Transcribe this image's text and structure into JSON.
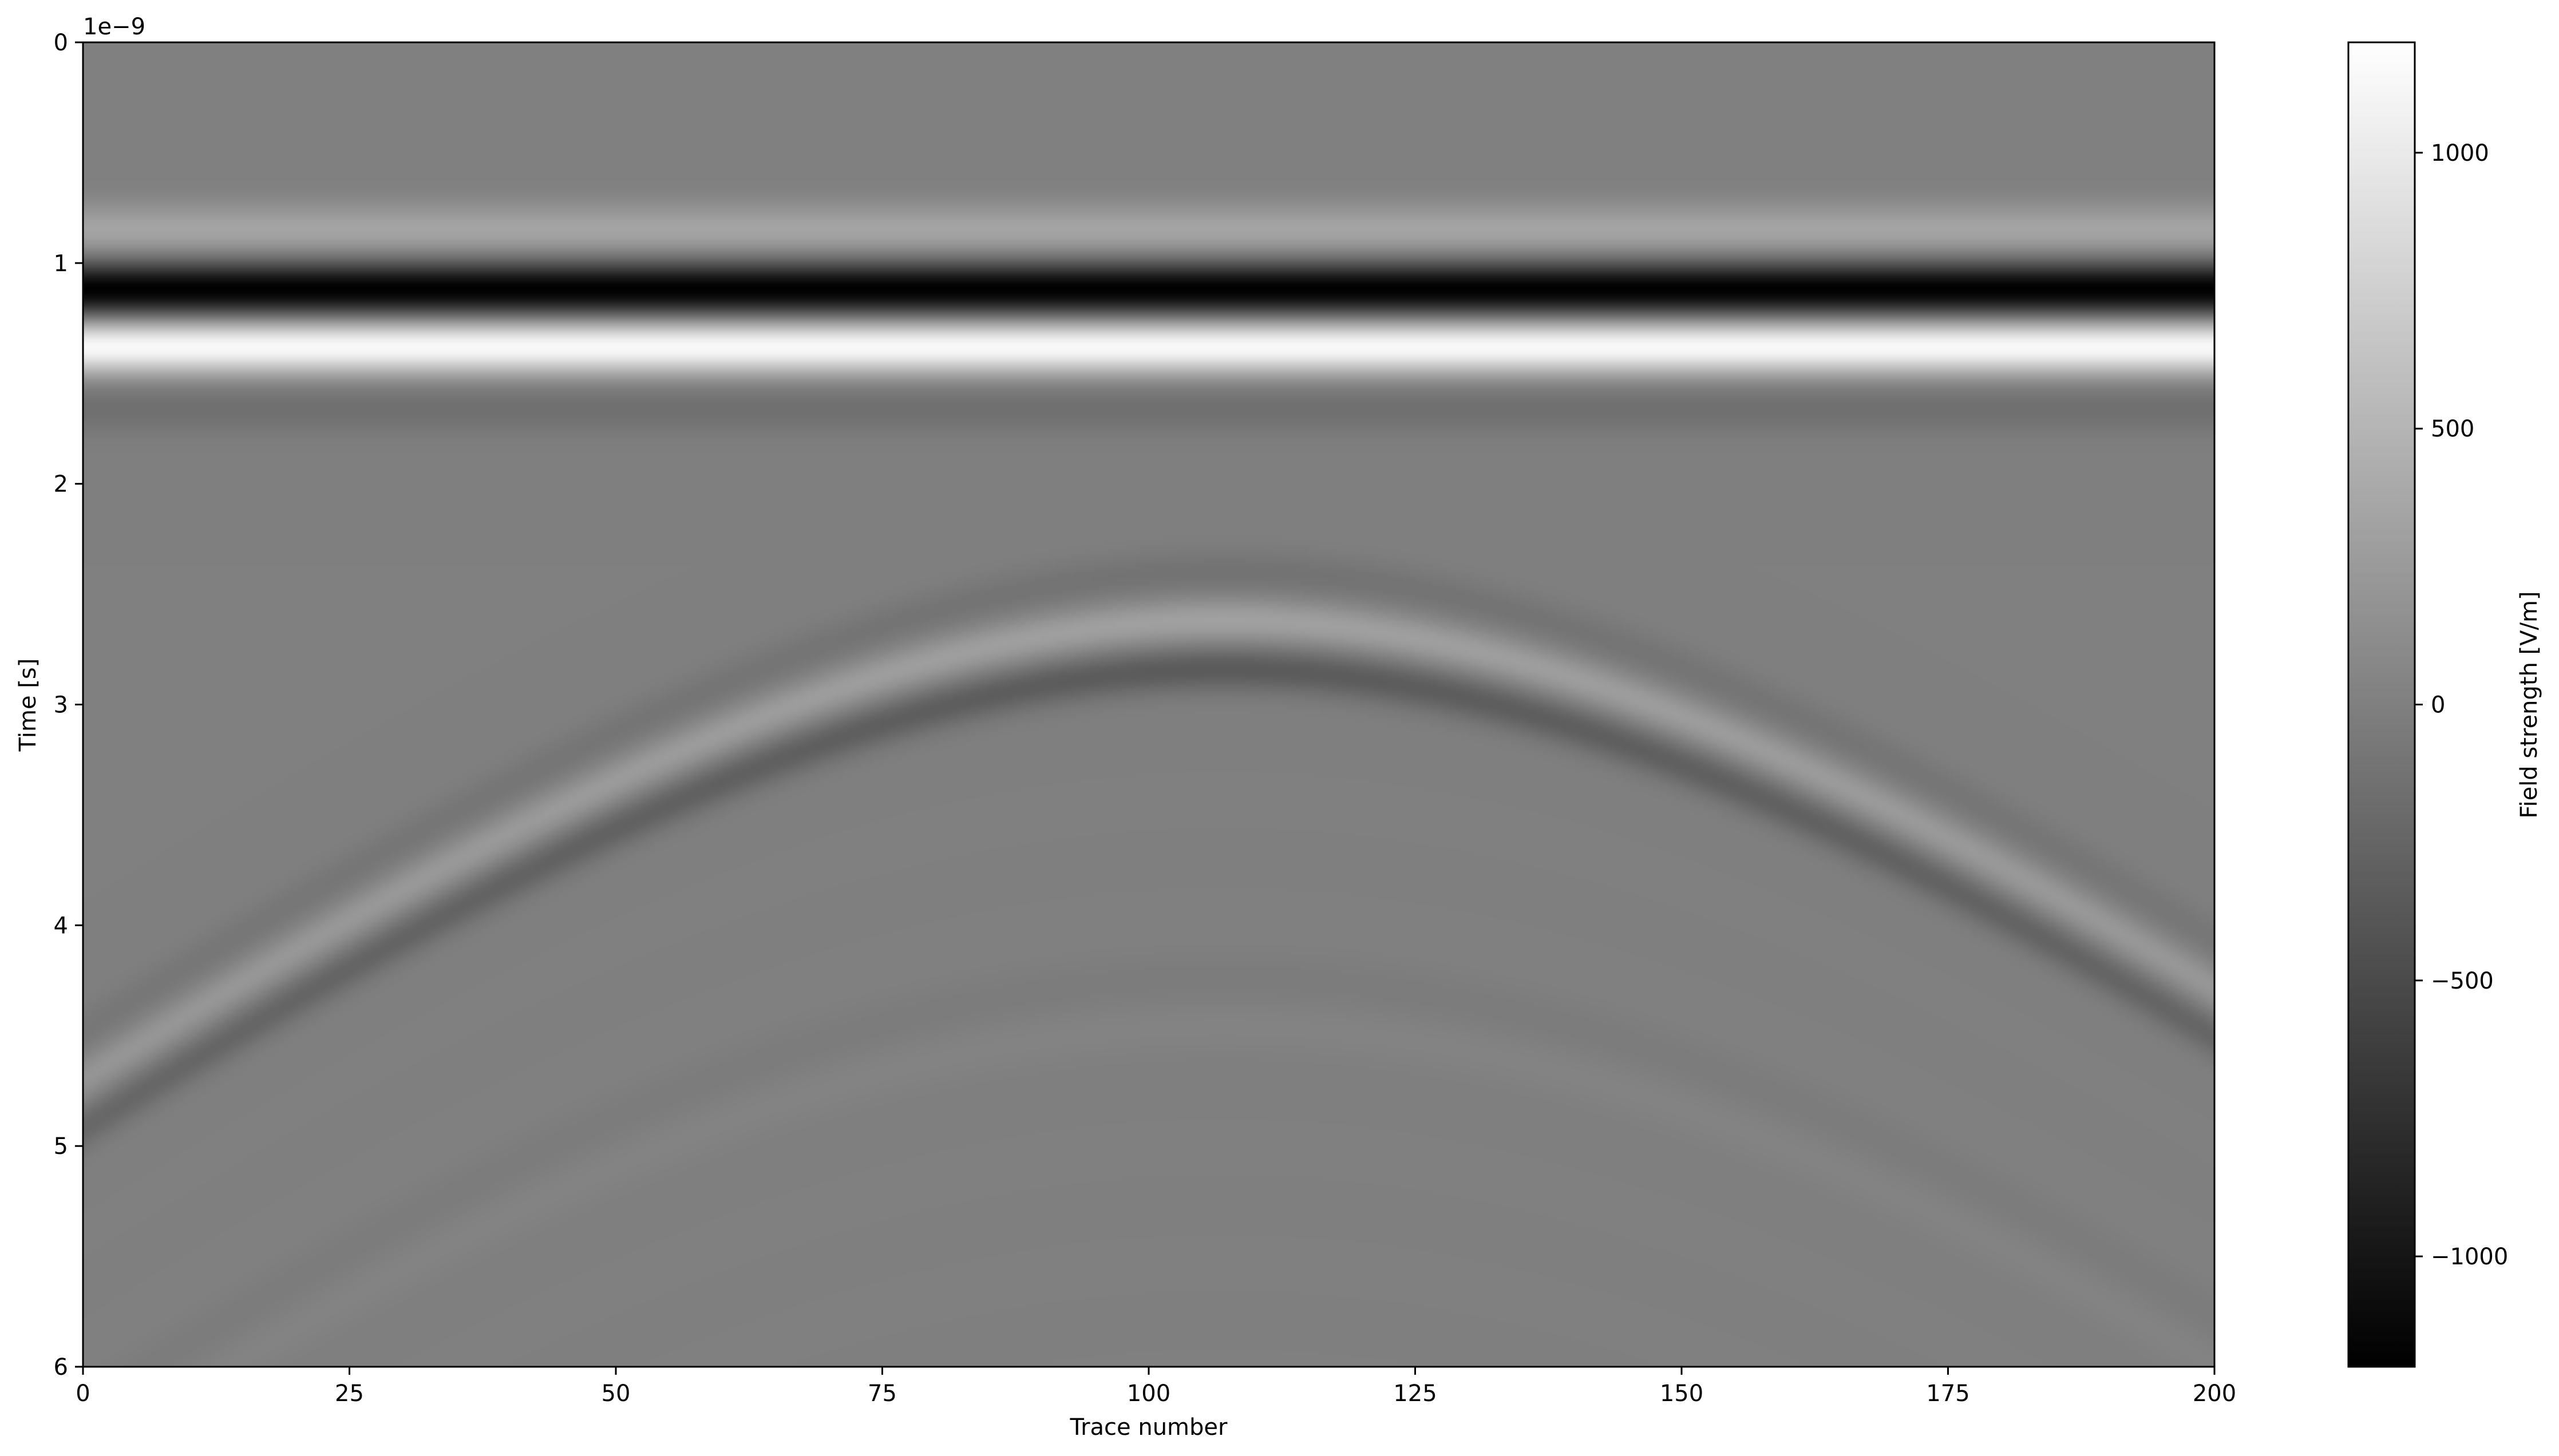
{
  "chart_data": {
    "type": "heatmap",
    "xlabel": "Trace number",
    "ylabel": "Time [s]",
    "offset_label": "1e−9",
    "xlim": [
      0,
      200
    ],
    "ylim": [
      6,
      0
    ],
    "y_inverted": true,
    "x_ticks": [
      {
        "value": 0,
        "label": "0"
      },
      {
        "value": 25,
        "label": "25"
      },
      {
        "value": 50,
        "label": "50"
      },
      {
        "value": 75,
        "label": "75"
      },
      {
        "value": 100,
        "label": "100"
      },
      {
        "value": 125,
        "label": "125"
      },
      {
        "value": 150,
        "label": "150"
      },
      {
        "value": 175,
        "label": "175"
      },
      {
        "value": 200,
        "label": "200"
      }
    ],
    "y_ticks": [
      {
        "value": 0,
        "label": "0"
      },
      {
        "value": 1,
        "label": "1"
      },
      {
        "value": 2,
        "label": "2"
      },
      {
        "value": 3,
        "label": "3"
      },
      {
        "value": 4,
        "label": "4"
      },
      {
        "value": 5,
        "label": "5"
      },
      {
        "value": 6,
        "label": "6"
      }
    ],
    "colorbar": {
      "label": "Field strength [V/m]",
      "colormap": "gray",
      "vmin": -1200,
      "vmax": 1200,
      "ticks": [
        {
          "value": 1000,
          "label": "1000"
        },
        {
          "value": 500,
          "label": "500"
        },
        {
          "value": 0,
          "label": "0"
        },
        {
          "value": -500,
          "label": "−500"
        },
        {
          "value": -1000,
          "label": "−1000"
        }
      ]
    },
    "features": {
      "direct_wave": {
        "bands": [
          {
            "time": 0.85,
            "value": 350
          },
          {
            "time": 1.12,
            "value": -1200
          },
          {
            "time": 1.38,
            "value": 1150
          },
          {
            "time": 1.65,
            "value": -150
          }
        ]
      },
      "hyperbola": {
        "apex_trace": 107,
        "apex_time": 2.62,
        "time_at_trace_0": 4.7,
        "bands": [
          {
            "time_offset": -0.22,
            "value": -120
          },
          {
            "time_offset": 0.0,
            "value": 320
          },
          {
            "time_offset": 0.22,
            "value": -350
          }
        ]
      },
      "multiple": {
        "apex_trace": 107,
        "apex_time": 4.35,
        "time_at_trace_0": 6.3,
        "amplitude": 40
      }
    }
  }
}
